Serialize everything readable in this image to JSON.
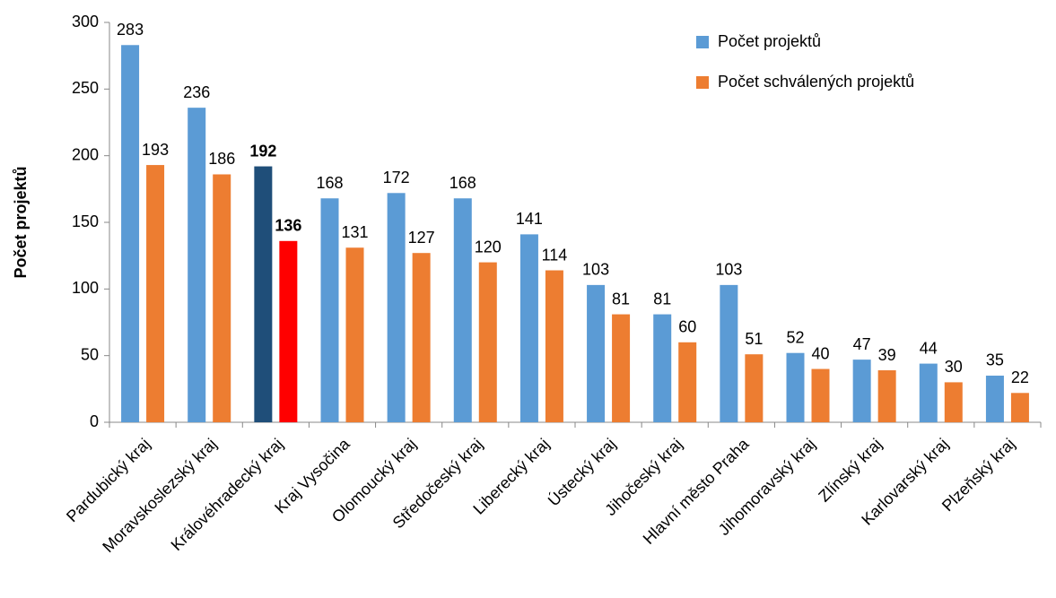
{
  "chart_data": {
    "type": "bar",
    "y_label": "Počet projektů",
    "categories": [
      "Pardubický kraj",
      "Moravskoslezský kraj",
      "Královéhradecký kraj",
      "Kraj Vysočina",
      "Olomoucký kraj",
      "Středočeský kraj",
      "Liberecký kraj",
      "Ústecký kraj",
      "Jihočeský kraj",
      "Hlavní město Praha",
      "Jihomoravský kraj",
      "Zlínský kraj",
      "Karlovarský kraj",
      "Plzeňský kraj"
    ],
    "series": [
      {
        "name": "Počet projektů",
        "color": "#5b9bd5",
        "highlight_color": "#1f4e79",
        "values": [
          283,
          236,
          192,
          168,
          172,
          168,
          141,
          103,
          81,
          103,
          52,
          47,
          44,
          35
        ]
      },
      {
        "name": "Počet schválených projektů",
        "color": "#ed7d31",
        "highlight_color": "#ff0000",
        "values": [
          193,
          186,
          136,
          131,
          127,
          120,
          114,
          81,
          60,
          51,
          40,
          39,
          30,
          22
        ]
      }
    ],
    "highlight_index": 2,
    "ylim": [
      0,
      300
    ],
    "yticks": [
      0,
      50,
      100,
      150,
      200,
      250,
      300
    ],
    "grid": false,
    "legend": "top-right"
  }
}
